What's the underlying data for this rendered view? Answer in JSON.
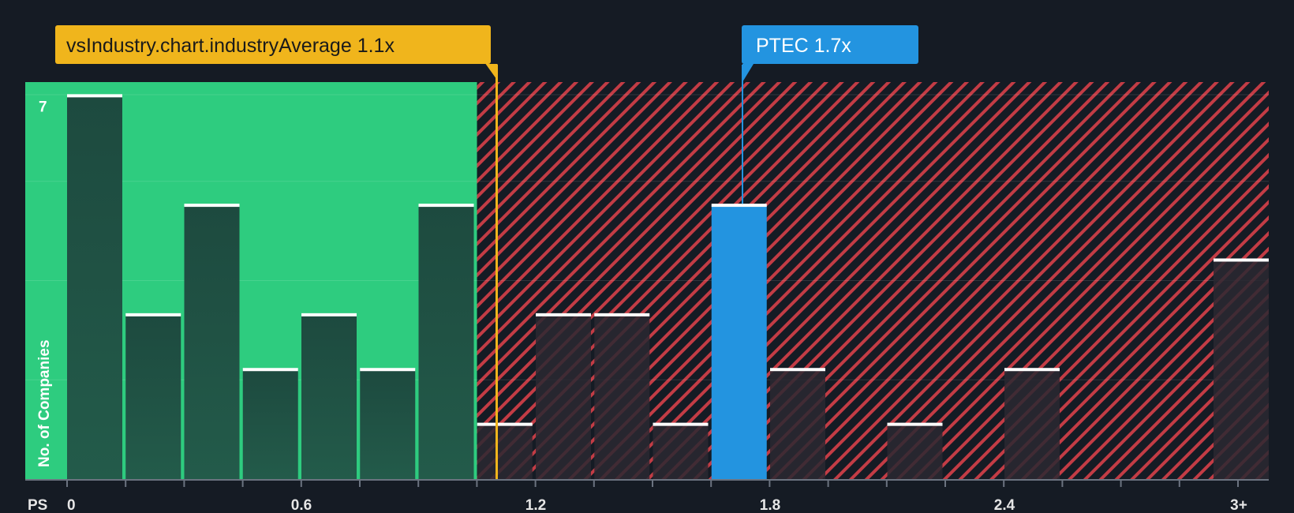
{
  "chart_data": {
    "type": "bar",
    "title": "",
    "xlabel": "PS",
    "ylabel": "No. of Companies",
    "categories": [
      "0.0",
      "0.15",
      "0.3",
      "0.45",
      "0.6",
      "0.75",
      "0.9",
      "1.05",
      "1.2",
      "1.35",
      "1.5",
      "1.65",
      "1.8",
      "1.95",
      "2.1",
      "2.25",
      "2.4",
      "2.55",
      "2.7",
      "2.85",
      "3+"
    ],
    "values": [
      7,
      3,
      5,
      2,
      3,
      2,
      5,
      1,
      3,
      3,
      1,
      5,
      2,
      0,
      1,
      0,
      2,
      0,
      0,
      0,
      4
    ],
    "x_ticks": [
      "0",
      "0.6",
      "1.2",
      "1.8",
      "2.4",
      "3+"
    ],
    "y_ticks": [
      "7"
    ],
    "ylim": [
      0,
      7.25
    ],
    "industry_average": {
      "label": "vsIndustry.chart.industryAverage 1.1x",
      "value": 1.1
    },
    "company": {
      "label": "PTEC 1.7x",
      "value": 1.7,
      "bar_category": "1.65"
    },
    "colors": {
      "background": "#151b24",
      "fair_zone": "#2ecc7f",
      "bar_in_fair": "#1e4a40",
      "overvalued_hatch": "#c33c45",
      "bar_overvalued": "#2a2831",
      "company_bar": "#2394e0",
      "industry_badge": "#f0b51c",
      "company_badge": "#2394e0",
      "bar_cap": "#ffffff",
      "axis": "#6b7380"
    }
  }
}
